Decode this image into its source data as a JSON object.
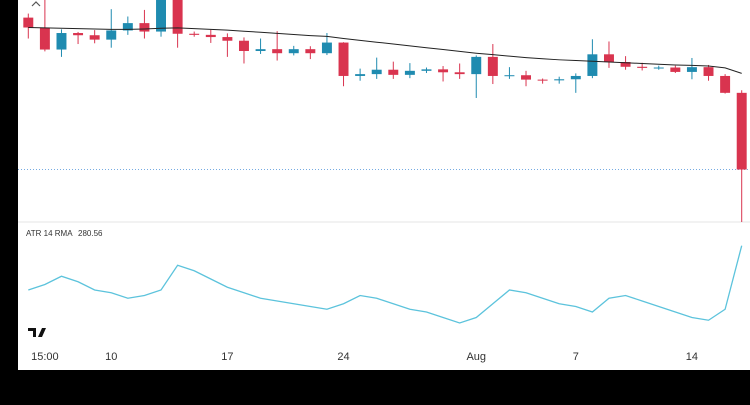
{
  "chart_data": [
    {
      "type": "candlestick",
      "categories": [
        null,
        "15:00",
        null,
        null,
        null,
        "10",
        null,
        null,
        null,
        null,
        null,
        null,
        "17",
        null,
        null,
        null,
        null,
        null,
        null,
        "24",
        null,
        null,
        null,
        null,
        null,
        null,
        null,
        "Aug",
        null,
        null,
        null,
        null,
        null,
        "7",
        null,
        null,
        null,
        null,
        null,
        null,
        "14",
        null,
        null,
        null
      ],
      "open": [
        30770,
        30500,
        29900,
        30350,
        30290,
        30170,
        30420,
        30620,
        30390,
        31480,
        30330,
        30300,
        30240,
        30140,
        29860,
        29910,
        29800,
        29910,
        29800,
        30090,
        29180,
        29230,
        29350,
        29210,
        29320,
        29360,
        29280,
        29230,
        29700,
        29180,
        29200,
        29080,
        29060,
        29090,
        29180,
        29770,
        29560,
        29430,
        29400,
        29410,
        29290,
        29420,
        29180,
        28720
      ],
      "high": [
        30880,
        31500,
        30450,
        30380,
        30430,
        31000,
        30800,
        30980,
        31800,
        31640,
        30390,
        30440,
        30340,
        30230,
        30200,
        30400,
        30000,
        29990,
        30350,
        30100,
        29380,
        29680,
        29570,
        29530,
        29410,
        29450,
        29520,
        29740,
        30050,
        29420,
        29320,
        29110,
        29160,
        29250,
        30180,
        30120,
        29720,
        29540,
        29460,
        29460,
        29670,
        29480,
        29230,
        28790
      ],
      "low": [
        30200,
        29850,
        29700,
        30050,
        30070,
        29950,
        30300,
        30200,
        30250,
        29950,
        30250,
        30080,
        29700,
        29520,
        29780,
        29600,
        29740,
        29640,
        29750,
        28900,
        29050,
        29100,
        29100,
        29120,
        29260,
        29030,
        29100,
        28580,
        28960,
        29100,
        28900,
        28970,
        28970,
        28720,
        29120,
        29400,
        29350,
        29330,
        29350,
        29260,
        29090,
        29050,
        28700,
        25200
      ],
      "close": [
        30500,
        29900,
        30350,
        30290,
        30170,
        30420,
        30620,
        30390,
        31480,
        30330,
        30300,
        30240,
        30140,
        29860,
        29910,
        29800,
        29910,
        29800,
        30090,
        29180,
        29230,
        29350,
        29210,
        29320,
        29360,
        29280,
        29230,
        29700,
        29180,
        29200,
        29080,
        29060,
        29090,
        29180,
        29770,
        29560,
        29430,
        29400,
        29410,
        29290,
        29420,
        29180,
        28720,
        26630
      ],
      "up_color": "#1f8bb0",
      "down_color": "#d9344f",
      "ylim": [
        25200,
        31250
      ],
      "overlay": {
        "color": "#222222",
        "values": [
          30500,
          30490,
          30480,
          30470,
          30460,
          30450,
          30450,
          30460,
          30480,
          30490,
          30470,
          30450,
          30430,
          30400,
          30370,
          30340,
          30310,
          30280,
          30260,
          30200,
          30150,
          30100,
          30050,
          30000,
          29950,
          29900,
          29850,
          29800,
          29760,
          29720,
          29680,
          29650,
          29620,
          29600,
          29580,
          29560,
          29540,
          29520,
          29500,
          29480,
          29470,
          29450,
          29400,
          29250
        ]
      }
    },
    {
      "type": "line",
      "title": "ATR 14 RMA",
      "color": "#5cc3dc",
      "values": [
        200,
        210,
        225,
        215,
        200,
        195,
        185,
        190,
        200,
        245,
        235,
        220,
        205,
        195,
        185,
        180,
        175,
        170,
        165,
        175,
        190,
        185,
        175,
        165,
        160,
        150,
        140,
        150,
        175,
        200,
        195,
        185,
        175,
        170,
        160,
        185,
        190,
        180,
        170,
        160,
        150,
        145,
        165,
        280.56
      ],
      "ylim": [
        100,
        300
      ]
    }
  ]
}
